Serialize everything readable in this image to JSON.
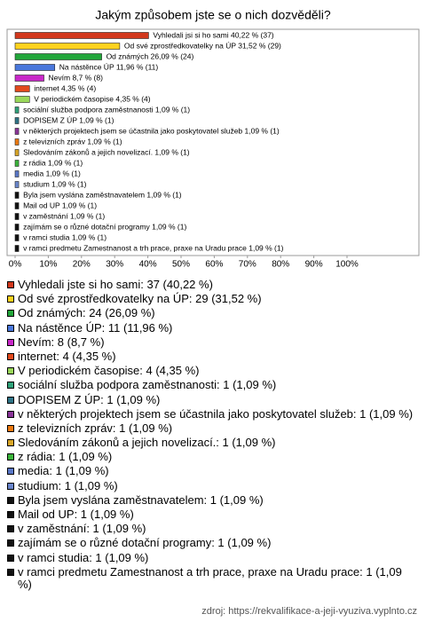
{
  "chart_data": {
    "type": "bar",
    "orientation": "horizontal",
    "title": "Jakým způsobem jste se o nich dozvěděli?",
    "values": [
      40.22,
      31.52,
      26.09,
      11.96,
      8.7,
      4.35,
      4.35,
      1.09,
      1.09,
      1.09,
      1.09,
      1.09,
      1.09,
      1.09,
      1.09,
      1.09,
      1.09,
      1.09,
      1.09,
      1.09,
      1.09
    ],
    "value_labels": [
      "Vyhledali jsi si ho sami 40,22 % (37)",
      "Od své zprostředkovatelky na ÚP 31,52 % (29)",
      "Od známých 26,09 % (24)",
      "Na nástěnce ÚP 11,96 % (11)",
      "Nevím 8,7 % (8)",
      "internet 4,35 % (4)",
      "V periodickém časopise 4,35 % (4)",
      "sociální služba podpora zaměstnanosti 1,09 % (1)",
      "DOPISEM Z ÚP 1,09 % (1)",
      "v některých projektech jsem se účastnila jako poskytovatel služeb 1,09 % (1)",
      "z televizních zpráv 1,09 % (1)",
      "Sledováním zákonů a jejich novelizací. 1,09 % (1)",
      "z rádia 1,09 % (1)",
      "media 1,09 % (1)",
      "studium 1,09 % (1)",
      "Byla jsem vyslána zaměstnavatelem 1,09 % (1)",
      "Mail od UP 1,09 % (1)",
      "v zaměstnání 1,09 % (1)",
      "zajímám se o různé dotační programy 1,09 % (1)",
      "v ramci studia 1,09 % (1)",
      "v ramci predmetu Zamestnanost a trh prace, praxe na Uradu prace 1,09 % (1)"
    ],
    "legend": [
      "Vyhledali jste si ho sami: 37 (40,22 %)",
      "Od své zprostředkovatelky na ÚP: 29 (31,52 %)",
      "Od známých: 24 (26,09 %)",
      "Na nástěnce ÚP: 11 (11,96 %)",
      "Nevím: 8 (8,7 %)",
      "internet: 4 (4,35 %)",
      "V periodickém časopise: 4 (4,35 %)",
      "sociální služba podpora zaměstnanosti: 1 (1,09 %)",
      "DOPISEM Z ÚP: 1 (1,09 %)",
      "v některých projektech jsem se účastnila jako poskytovatel služeb: 1 (1,09 %)",
      "z televizních zpráv: 1 (1,09 %)",
      "Sledováním zákonů a jejich novelizací.: 1 (1,09 %)",
      "z rádia: 1 (1,09 %)",
      "media: 1 (1,09 %)",
      "studium: 1 (1,09 %)",
      "Byla jsem vyslána zaměstnavatelem: 1 (1,09 %)",
      "Mail od UP: 1 (1,09 %)",
      "v zaměstnání: 1 (1,09 %)",
      "zajímám se o různé dotační programy: 1 (1,09 %)",
      "v ramci studia: 1 (1,09 %)",
      "v ramci predmetu Zamestnanost a trh prace, praxe na Uradu prace: 1 (1,09 %)"
    ],
    "colors": [
      "#d2381c",
      "#ffd21e",
      "#22a63a",
      "#4a78dc",
      "#c828c8",
      "#e24a1c",
      "#9ad85a",
      "#2fa27a",
      "#2f7487",
      "#8a3498",
      "#ee7a10",
      "#d9a628",
      "#3bb43b",
      "#5a78c8",
      "#6a86cc",
      "#111111",
      "#111111",
      "#111111",
      "#111111",
      "#111111",
      "#111111"
    ],
    "xlim": [
      0,
      100
    ],
    "xticks": [
      {
        "value": 0,
        "label": "0%"
      },
      {
        "value": 10,
        "label": "10%"
      },
      {
        "value": 20,
        "label": "20%"
      },
      {
        "value": 30,
        "label": "30%"
      },
      {
        "value": 40,
        "label": "40%"
      },
      {
        "value": 50,
        "label": "50%"
      },
      {
        "value": 60,
        "label": "60%"
      },
      {
        "value": 70,
        "label": "70%"
      },
      {
        "value": 80,
        "label": "80%"
      },
      {
        "value": 90,
        "label": "90%"
      },
      {
        "value": 100,
        "label": "100%"
      }
    ],
    "source": "zdroj: https://rekvalifikace-a-jeji-vyuziva.vyplnto.cz"
  }
}
